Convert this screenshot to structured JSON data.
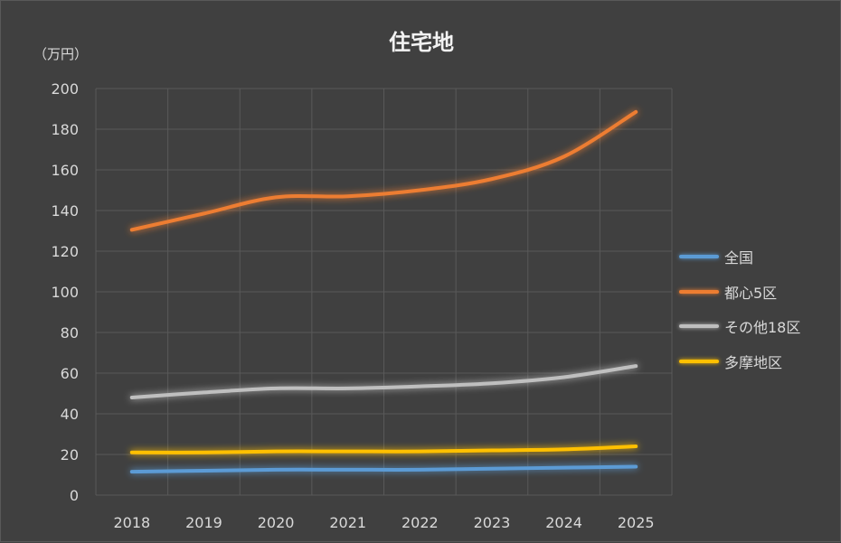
{
  "chart_data": {
    "type": "line",
    "title": "住宅地",
    "ylabel": "（万円）",
    "xlabel": "",
    "categories": [
      "2018",
      "2019",
      "2020",
      "2021",
      "2022",
      "2023",
      "2024",
      "2025"
    ],
    "ylim": [
      0,
      200
    ],
    "yticks": [
      "0",
      "20",
      "40",
      "60",
      "80",
      "100",
      "120",
      "140",
      "160",
      "180",
      "200"
    ],
    "grid": true,
    "legend_position": "right",
    "series": [
      {
        "name": "全国",
        "color": "#5b9bd5",
        "values": [
          11.5,
          12,
          12.5,
          12.5,
          12.5,
          13,
          13.5,
          14
        ]
      },
      {
        "name": "都心5区",
        "color": "#ed7d31",
        "values": [
          130.5,
          138.5,
          146.5,
          147,
          150,
          155.5,
          166.5,
          188.5
        ]
      },
      {
        "name": "その他18区",
        "color": "#bfbfbf",
        "values": [
          48,
          50.5,
          52.5,
          52.5,
          53.5,
          55,
          58,
          63.5
        ]
      },
      {
        "name": "多摩地区",
        "color": "#ffc000",
        "values": [
          21,
          21,
          21.5,
          21.5,
          21.5,
          22,
          22.5,
          24
        ]
      }
    ]
  }
}
